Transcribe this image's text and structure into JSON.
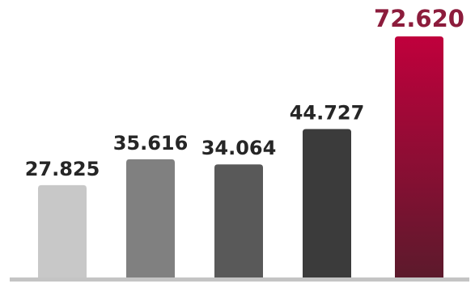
{
  "chart_data": {
    "type": "bar",
    "categories": [
      null,
      null,
      null,
      null,
      null
    ],
    "values": [
      27.825,
      35.616,
      34.064,
      44.727,
      72.62
    ],
    "value_labels": [
      "27.825",
      "35.616",
      "34.064",
      "44.727",
      "72.620"
    ],
    "colors": [
      "#c8c8c8",
      "#808080",
      "#595959",
      "#3b3b3b",
      "#c0003c"
    ],
    "label_colors": [
      "#262626",
      "#262626",
      "#262626",
      "#262626",
      "#8c1c3c"
    ]
  }
}
